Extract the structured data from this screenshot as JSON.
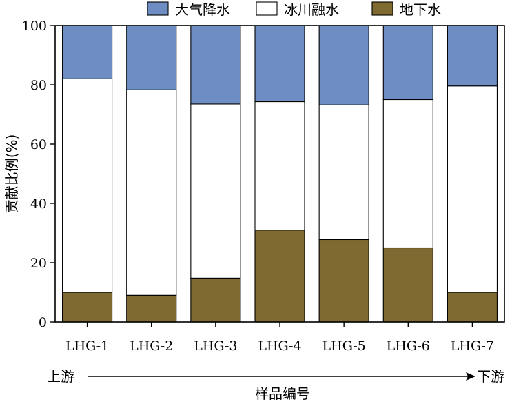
{
  "chart_data": {
    "type": "bar",
    "stacked": true,
    "categories": [
      "LHG-1",
      "LHG-2",
      "LHG-3",
      "LHG-4",
      "LHG-5",
      "LHG-6",
      "LHG-7"
    ],
    "series": [
      {
        "name": "地下水",
        "color": "#7f6a32",
        "values": [
          10,
          9,
          14.8,
          31,
          27.8,
          25,
          10
        ]
      },
      {
        "name": "冰川融水",
        "color": "#ffffff",
        "values": [
          72,
          69.3,
          58.7,
          43.3,
          45.4,
          50,
          69.6
        ]
      },
      {
        "name": "大气降水",
        "color": "#6e8dc2",
        "values": [
          18,
          21.7,
          26.5,
          25.7,
          26.8,
          25,
          20.4
        ]
      }
    ],
    "legend_order": [
      "大气降水",
      "冰川融水",
      "地下水"
    ],
    "legend_position": "top",
    "ylabel": "贡献比例(%)",
    "xlabel": "样品编号",
    "ylim": [
      0,
      100
    ],
    "yticks": [
      0,
      20,
      40,
      60,
      80,
      100
    ],
    "grid": false,
    "flow": {
      "start_label": "上游",
      "end_label": "下游"
    }
  }
}
